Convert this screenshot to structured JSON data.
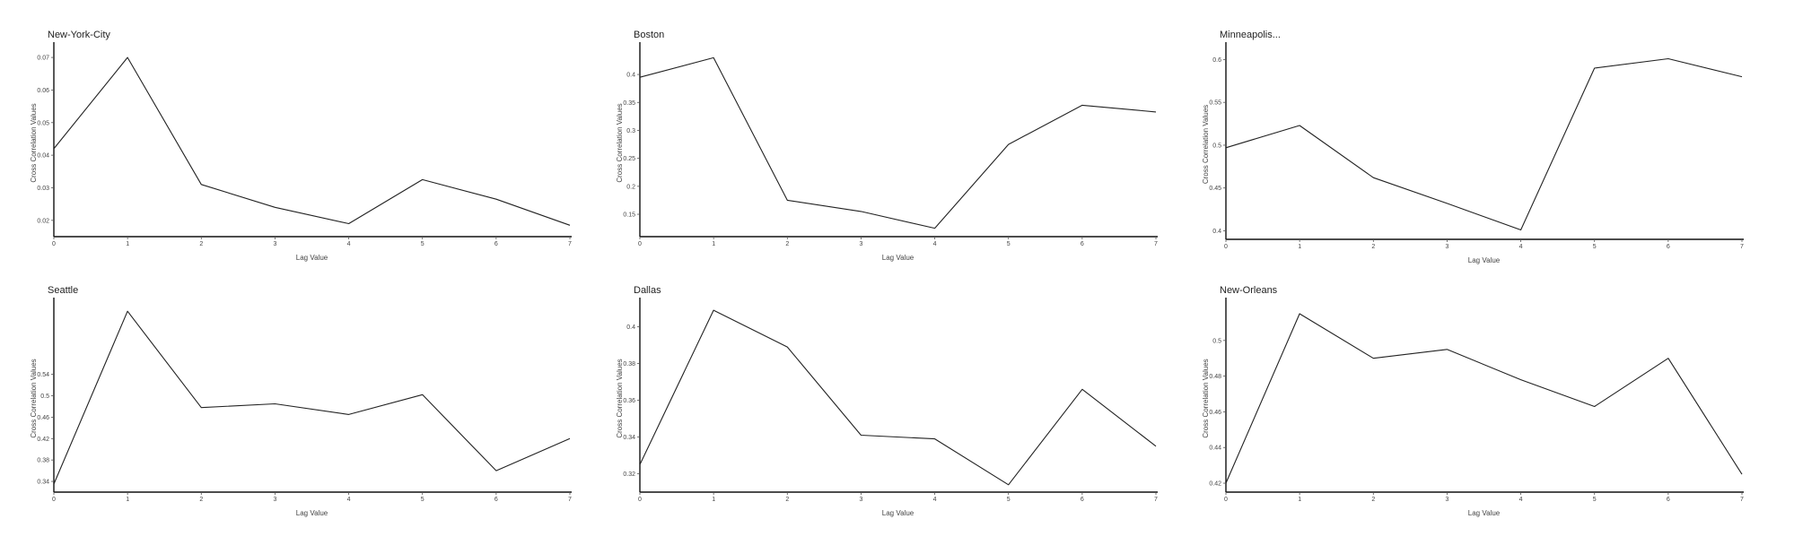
{
  "chart_data": [
    {
      "type": "line",
      "title": "New-York-City",
      "xlabel": "Lag Value",
      "ylabel": "Cross Correlation Values",
      "x": [
        0,
        1,
        2,
        3,
        4,
        5,
        6,
        7
      ],
      "values": [
        0.042,
        0.07,
        0.031,
        0.024,
        0.019,
        0.0325,
        0.0265,
        0.0185
      ],
      "xticks": [
        "0",
        "1",
        "2",
        "3",
        "4",
        "5",
        "6",
        "7"
      ],
      "yticks": [
        0.02,
        0.03,
        0.04,
        0.05,
        0.06,
        0.07
      ],
      "ytick_labels": [
        "0.02",
        "0.03",
        "0.04",
        "0.05",
        "0.06",
        "0.07"
      ],
      "ylim": [
        0.015,
        0.0725
      ],
      "grid": false
    },
    {
      "type": "line",
      "title": "Boston",
      "xlabel": "Lag Value",
      "ylabel": "Cross Correlation Values",
      "x": [
        0,
        1,
        2,
        3,
        4,
        5,
        6,
        7
      ],
      "values": [
        0.395,
        0.43,
        0.175,
        0.155,
        0.125,
        0.275,
        0.345,
        0.333
      ],
      "xticks": [
        "0",
        "1",
        "2",
        "3",
        "4",
        "5",
        "6",
        "7"
      ],
      "yticks": [
        0.15,
        0.2,
        0.25,
        0.3,
        0.35,
        0.4
      ],
      "ytick_labels": [
        "0.15",
        "0.2",
        "0.25",
        "0.3",
        "0.35",
        "0.4"
      ],
      "ylim": [
        0.11,
        0.445
      ],
      "grid": false
    },
    {
      "type": "line",
      "title": "Minneapolis...",
      "xlabel": "Lag Value",
      "ylabel": "Cross Correlation Values",
      "x": [
        0,
        1,
        2,
        3,
        4,
        5,
        6,
        7
      ],
      "values": [
        0.497,
        0.523,
        0.462,
        0.432,
        0.401,
        0.59,
        0.601,
        0.58
      ],
      "xticks": [
        "0",
        "1",
        "2",
        "3",
        "4",
        "5",
        "6",
        "7"
      ],
      "yticks": [
        0.4,
        0.45,
        0.5,
        0.55,
        0.6
      ],
      "ytick_labels": [
        "0.4",
        "0.45",
        "0.5",
        "0.55",
        "0.6"
      ],
      "ylim": [
        0.39,
        0.612
      ],
      "grid": false
    },
    {
      "type": "line",
      "title": "Seattle",
      "xlabel": "Lag Value",
      "ylabel": "Cross Correlation Values",
      "x": [
        0,
        1,
        2,
        3,
        4,
        5,
        6,
        7
      ],
      "values": [
        0.335,
        0.658,
        0.478,
        0.485,
        0.465,
        0.502,
        0.36,
        0.42
      ],
      "xticks": [
        "0",
        "1",
        "2",
        "3",
        "4",
        "5",
        "6",
        "7"
      ],
      "yticks": [
        0.34,
        0.38,
        0.42,
        0.46,
        0.5,
        0.54
      ],
      "ytick_labels": [
        "0.34",
        "0.38",
        "0.42",
        "0.46",
        "0.5",
        "0.54"
      ],
      "ytick_values": [
        0.34,
        0.38,
        0.42,
        0.46,
        0.5,
        0.54
      ],
      "ylim": [
        0.32,
        0.67
      ],
      "grid": false
    },
    {
      "type": "line",
      "title": "Dallas",
      "xlabel": "Lag Value",
      "ylabel": "Cross Correlation Values",
      "x": [
        0,
        1,
        2,
        3,
        4,
        5,
        6,
        7
      ],
      "values": [
        0.325,
        0.409,
        0.389,
        0.341,
        0.339,
        0.314,
        0.366,
        0.335
      ],
      "xticks": [
        "0",
        "1",
        "2",
        "3",
        "4",
        "5",
        "6",
        "7"
      ],
      "yticks": [
        0.32,
        0.34,
        0.36,
        0.38,
        0.4
      ],
      "ytick_labels": [
        "0.32",
        "0.34",
        "0.36",
        "0.38",
        "0.4"
      ],
      "ylim": [
        0.31,
        0.412
      ],
      "grid": false
    },
    {
      "type": "line",
      "title": "New-Orleans",
      "xlabel": "Lag Value",
      "ylabel": "Cross Correlation Values",
      "x": [
        0,
        1,
        2,
        3,
        4,
        5,
        6,
        7
      ],
      "values": [
        0.42,
        0.515,
        0.49,
        0.495,
        0.478,
        0.463,
        0.49,
        0.425
      ],
      "xticks": [
        "0",
        "1",
        "2",
        "3",
        "4",
        "5",
        "6",
        "7"
      ],
      "yticks": [
        0.42,
        0.44,
        0.46,
        0.48,
        0.5
      ],
      "ytick_labels": [
        "0.42",
        "0.44",
        "0.46",
        "0.48",
        "0.5"
      ],
      "ylim": [
        0.415,
        0.52
      ],
      "grid": false
    }
  ]
}
